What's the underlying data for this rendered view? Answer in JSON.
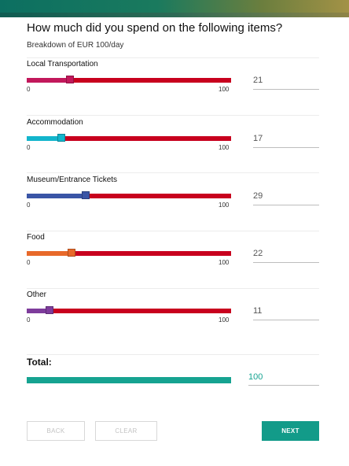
{
  "survey": {
    "question": "How much did you spend on the following items?",
    "subtitle": "Breakdown of EUR 100/day",
    "scale": {
      "min": "0",
      "max": "100"
    },
    "items": [
      {
        "label": "Local Transportation",
        "value": 21,
        "value_text": "21",
        "color": "#c2185b"
      },
      {
        "label": "Accommodation",
        "value": 17,
        "value_text": "17",
        "color": "#13b5cc"
      },
      {
        "label": "Museum/Entrance Tickets",
        "value": 29,
        "value_text": "29",
        "color": "#3a55a6"
      },
      {
        "label": "Food",
        "value": 22,
        "value_text": "22",
        "color": "#e8692a"
      },
      {
        "label": "Other",
        "value": 11,
        "value_text": "11",
        "color": "#7e3c9c"
      }
    ],
    "total": {
      "label": "Total:",
      "value": "100",
      "color": "#16a391"
    },
    "track_color": "#c8001e"
  },
  "buttons": {
    "back": "BACK",
    "clear": "CLEAR",
    "next": "NEXT"
  }
}
